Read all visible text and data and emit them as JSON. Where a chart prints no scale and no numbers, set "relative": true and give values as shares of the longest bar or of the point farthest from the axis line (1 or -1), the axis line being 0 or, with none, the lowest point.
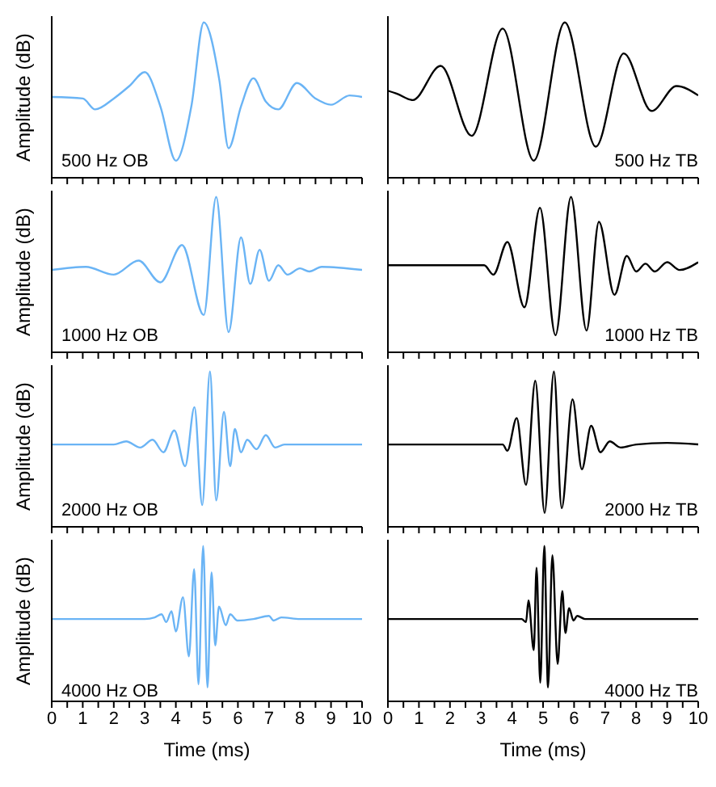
{
  "chart_data": [
    {
      "type": "line",
      "relative": true,
      "ylabel": "Amplitude (dB)",
      "annotations": [
        "500 Hz OB"
      ],
      "tick_labels": false,
      "xlim": [
        0,
        10
      ],
      "xticks": [
        0,
        {
          "value": 0.5,
          "label": null
        },
        1,
        {
          "value": 1.5,
          "label": null
        },
        2,
        {
          "value": 2.5,
          "label": null
        },
        3,
        {
          "value": 3.5,
          "label": null
        },
        4,
        {
          "value": 4.5,
          "label": null
        },
        5,
        {
          "value": 5.5,
          "label": null
        },
        6,
        {
          "value": 6.5,
          "label": null
        },
        7,
        {
          "value": 7.5,
          "label": null
        },
        8,
        {
          "value": 8.5,
          "label": null
        },
        9,
        {
          "value": 9.5,
          "label": null
        },
        10
      ],
      "series": [
        {
          "color": "#6ab4f5",
          "x": [
            0,
            1,
            1.4,
            2,
            2.5,
            3,
            3.5,
            4,
            4.5,
            4.9,
            5.4,
            5.7,
            6.1,
            6.5,
            6.9,
            7.3,
            7.9,
            8.5,
            9,
            9.6,
            10
          ],
          "values": [
            0.52,
            0.51,
            0.44,
            0.51,
            0.59,
            0.68,
            0.46,
            0.11,
            0.46,
            1,
            0.63,
            0.19,
            0.46,
            0.64,
            0.49,
            0.44,
            0.61,
            0.51,
            0.47,
            0.53,
            0.52
          ]
        }
      ]
    },
    {
      "type": "line",
      "relative": true,
      "annotations": [
        "500 Hz TB"
      ],
      "tick_labels": false,
      "xlim": [
        0,
        10
      ],
      "xticks": [
        0,
        {
          "value": 0.5,
          "label": null
        },
        1,
        {
          "value": 1.5,
          "label": null
        },
        2,
        {
          "value": 2.5,
          "label": null
        },
        3,
        {
          "value": 3.5,
          "label": null
        },
        4,
        {
          "value": 4.5,
          "label": null
        },
        5,
        {
          "value": 5.5,
          "label": null
        },
        6,
        {
          "value": 6.5,
          "label": null
        },
        7,
        {
          "value": 7.5,
          "label": null
        },
        8,
        {
          "value": 8.5,
          "label": null
        },
        9,
        {
          "value": 9.5,
          "label": null
        },
        10
      ],
      "series": [
        {
          "color": "#000000",
          "x": [
            0,
            0.3,
            0.8,
            1.7,
            2.7,
            3.7,
            4.7,
            5.7,
            6.7,
            7.6,
            8.5,
            9.3,
            10
          ],
          "values": [
            0.56,
            0.54,
            0.5,
            0.72,
            0.27,
            0.96,
            0.11,
            1,
            0.2,
            0.8,
            0.43,
            0.59,
            0.53
          ]
        }
      ]
    },
    {
      "type": "line",
      "relative": true,
      "ylabel": "Amplitude (dB)",
      "annotations": [
        "1000 Hz OB"
      ],
      "tick_labels": false,
      "xlim": [
        0,
        10
      ],
      "xticks": [
        0,
        {
          "value": 0.5,
          "label": null
        },
        1,
        {
          "value": 1.5,
          "label": null
        },
        2,
        {
          "value": 2.5,
          "label": null
        },
        3,
        {
          "value": 3.5,
          "label": null
        },
        4,
        {
          "value": 4.5,
          "label": null
        },
        5,
        {
          "value": 5.5,
          "label": null
        },
        6,
        {
          "value": 6.5,
          "label": null
        },
        7,
        {
          "value": 7.5,
          "label": null
        },
        8,
        {
          "value": 8.5,
          "label": null
        },
        9,
        {
          "value": 9.5,
          "label": null
        },
        10
      ],
      "series": [
        {
          "color": "#6ab4f5",
          "x": [
            0,
            1.1,
            2,
            2.8,
            3.5,
            4.2,
            4.9,
            5.3,
            5.7,
            6.1,
            6.4,
            6.7,
            7.0,
            7.3,
            7.6,
            8.0,
            8.3,
            8.7,
            10
          ],
          "values": [
            0.53,
            0.55,
            0.5,
            0.59,
            0.45,
            0.69,
            0.24,
            1,
            0.13,
            0.74,
            0.44,
            0.66,
            0.46,
            0.56,
            0.5,
            0.54,
            0.52,
            0.55,
            0.53
          ]
        }
      ]
    },
    {
      "type": "line",
      "relative": true,
      "annotations": [
        "1000 Hz TB"
      ],
      "tick_labels": false,
      "xlim": [
        0,
        10
      ],
      "xticks": [
        0,
        {
          "value": 0.5,
          "label": null
        },
        1,
        {
          "value": 1.5,
          "label": null
        },
        2,
        {
          "value": 2.5,
          "label": null
        },
        3,
        {
          "value": 3.5,
          "label": null
        },
        4,
        {
          "value": 4.5,
          "label": null
        },
        5,
        {
          "value": 5.5,
          "label": null
        },
        6,
        {
          "value": 6.5,
          "label": null
        },
        7,
        {
          "value": 7.5,
          "label": null
        },
        8,
        {
          "value": 8.5,
          "label": null
        },
        9,
        {
          "value": 9.5,
          "label": null
        },
        10
      ],
      "series": [
        {
          "color": "#000000",
          "x": [
            0,
            3.1,
            3.4,
            3.85,
            4.4,
            4.9,
            5.4,
            5.9,
            6.4,
            6.8,
            7.3,
            7.7,
            8.0,
            8.3,
            8.6,
            9.0,
            9.4,
            10
          ],
          "values": [
            0.56,
            0.56,
            0.5,
            0.71,
            0.29,
            0.93,
            0.11,
            1,
            0.14,
            0.84,
            0.37,
            0.62,
            0.52,
            0.57,
            0.52,
            0.58,
            0.53,
            0.58
          ]
        }
      ]
    },
    {
      "type": "line",
      "relative": true,
      "ylabel": "Amplitude (dB)",
      "annotations": [
        "2000 Hz OB"
      ],
      "tick_labels": false,
      "xlim": [
        0,
        10
      ],
      "xticks": [
        0,
        {
          "value": 0.5,
          "label": null
        },
        1,
        {
          "value": 1.5,
          "label": null
        },
        2,
        {
          "value": 2.5,
          "label": null
        },
        3,
        {
          "value": 3.5,
          "label": null
        },
        4,
        {
          "value": 4.5,
          "label": null
        },
        5,
        {
          "value": 5.5,
          "label": null
        },
        6,
        {
          "value": 6.5,
          "label": null
        },
        7,
        {
          "value": 7.5,
          "label": null
        },
        8,
        {
          "value": 8.5,
          "label": null
        },
        9,
        {
          "value": 9.5,
          "label": null
        },
        10
      ],
      "series": [
        {
          "color": "#6ab4f5",
          "x": [
            0,
            2,
            2.4,
            2.85,
            3.25,
            3.6,
            3.95,
            4.3,
            4.6,
            4.85,
            5.1,
            5.3,
            5.55,
            5.75,
            5.9,
            6.1,
            6.3,
            6.6,
            6.9,
            7.2,
            7.5,
            10
          ],
          "values": [
            0.53,
            0.53,
            0.55,
            0.51,
            0.56,
            0.48,
            0.62,
            0.39,
            0.77,
            0.14,
            1,
            0.17,
            0.74,
            0.39,
            0.63,
            0.48,
            0.56,
            0.5,
            0.59,
            0.51,
            0.53,
            0.53
          ]
        }
      ]
    },
    {
      "type": "line",
      "relative": true,
      "annotations": [
        "2000 Hz TB"
      ],
      "tick_labels": false,
      "xlim": [
        0,
        10
      ],
      "xticks": [
        0,
        {
          "value": 0.5,
          "label": null
        },
        1,
        {
          "value": 1.5,
          "label": null
        },
        2,
        {
          "value": 2.5,
          "label": null
        },
        3,
        {
          "value": 3.5,
          "label": null
        },
        4,
        {
          "value": 4.5,
          "label": null
        },
        5,
        {
          "value": 5.5,
          "label": null
        },
        6,
        {
          "value": 6.5,
          "label": null
        },
        7,
        {
          "value": 7.5,
          "label": null
        },
        8,
        {
          "value": 8.5,
          "label": null
        },
        9,
        {
          "value": 9.5,
          "label": null
        },
        10
      ],
      "series": [
        {
          "color": "#000000",
          "x": [
            0,
            3.7,
            3.85,
            4.15,
            4.45,
            4.75,
            5.05,
            5.35,
            5.6,
            5.95,
            6.25,
            6.55,
            6.85,
            7.15,
            7.5,
            8,
            9,
            10
          ],
          "values": [
            0.53,
            0.53,
            0.49,
            0.7,
            0.27,
            0.94,
            0.09,
            1,
            0.12,
            0.82,
            0.37,
            0.65,
            0.48,
            0.55,
            0.51,
            0.53,
            0.54,
            0.53
          ]
        }
      ]
    },
    {
      "type": "line",
      "relative": true,
      "ylabel": "Amplitude (dB)",
      "xlabel": "Time (ms)",
      "annotations": [
        "4000 Hz OB"
      ],
      "tick_labels": "x",
      "xlim": [
        0,
        10
      ],
      "xticks": [
        0,
        {
          "value": 0.5,
          "label": null
        },
        1,
        {
          "value": 1.5,
          "label": null
        },
        2,
        {
          "value": 2.5,
          "label": null
        },
        3,
        {
          "value": 3.5,
          "label": null
        },
        4,
        {
          "value": 4.5,
          "label": null
        },
        5,
        {
          "value": 5.5,
          "label": null
        },
        6,
        {
          "value": 6.5,
          "label": null
        },
        7,
        {
          "value": 7.5,
          "label": null
        },
        8,
        {
          "value": 8.5,
          "label": null
        },
        9,
        {
          "value": 9.5,
          "label": null
        },
        10
      ],
      "series": [
        {
          "color": "#6ab4f5",
          "x": [
            0,
            3,
            3.32,
            3.54,
            3.69,
            3.86,
            4.0,
            4.23,
            4.42,
            4.59,
            4.73,
            4.88,
            5.02,
            5.15,
            5.27,
            5.39,
            5.61,
            5.75,
            5.99,
            6.5,
            7.0,
            7.15,
            7.4,
            8,
            10
          ],
          "values": [
            0.53,
            0.53,
            0.54,
            0.56,
            0.51,
            0.58,
            0.45,
            0.67,
            0.29,
            0.85,
            0.11,
            1,
            0.09,
            0.83,
            0.36,
            0.61,
            0.49,
            0.56,
            0.52,
            0.53,
            0.55,
            0.52,
            0.54,
            0.53,
            0.53
          ]
        }
      ]
    },
    {
      "type": "line",
      "relative": true,
      "xlabel": "Time (ms)",
      "annotations": [
        "4000 Hz TB"
      ],
      "tick_labels": "x",
      "xlim": [
        0,
        10
      ],
      "xticks": [
        0,
        {
          "value": 0.5,
          "label": null
        },
        1,
        {
          "value": 1.5,
          "label": null
        },
        2,
        {
          "value": 2.5,
          "label": null
        },
        3,
        {
          "value": 3.5,
          "label": null
        },
        4,
        {
          "value": 4.5,
          "label": null
        },
        5,
        {
          "value": 5.5,
          "label": null
        },
        6,
        {
          "value": 6.5,
          "label": null
        },
        7,
        {
          "value": 7.5,
          "label": null
        },
        8,
        {
          "value": 8.5,
          "label": null
        },
        9,
        {
          "value": 9.5,
          "label": null
        },
        10
      ],
      "series": [
        {
          "color": "#000000",
          "x": [
            0,
            4.31,
            4.45,
            4.53,
            4.7,
            4.79,
            4.91,
            5.04,
            5.16,
            5.3,
            5.47,
            5.62,
            5.72,
            5.84,
            5.98,
            6.1,
            6.35,
            10
          ],
          "values": [
            0.53,
            0.53,
            0.51,
            0.65,
            0.33,
            0.86,
            0.12,
            1,
            0.09,
            0.94,
            0.24,
            0.71,
            0.44,
            0.6,
            0.52,
            0.55,
            0.53,
            0.53
          ]
        }
      ]
    }
  ]
}
